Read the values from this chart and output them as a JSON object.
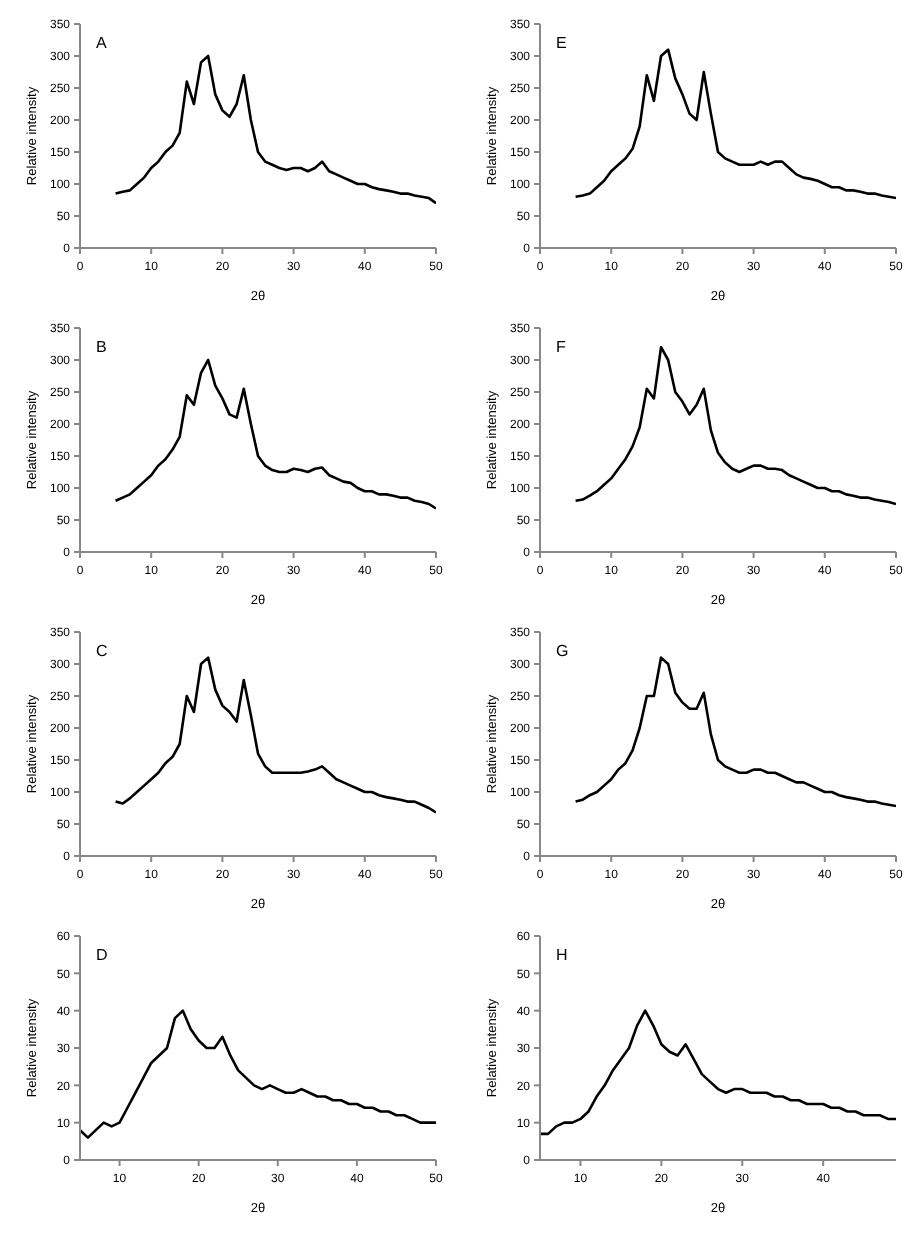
{
  "chart_data": [
    {
      "type": "line",
      "title": "A",
      "xlabel": "2θ",
      "ylabel": "Relative intensity",
      "xlim": [
        0,
        50
      ],
      "ylim": [
        0,
        350
      ],
      "xticks": [
        0,
        10,
        20,
        30,
        40,
        50
      ],
      "yticks": [
        0,
        50,
        100,
        150,
        200,
        250,
        300,
        350
      ],
      "x": [
        5,
        6,
        7,
        8,
        9,
        10,
        11,
        12,
        13,
        14,
        15,
        16,
        17,
        18,
        19,
        20,
        21,
        22,
        23,
        24,
        25,
        26,
        27,
        28,
        29,
        30,
        31,
        32,
        33,
        34,
        35,
        36,
        37,
        38,
        39,
        40,
        41,
        42,
        43,
        44,
        45,
        46,
        47,
        48,
        49,
        50
      ],
      "series": [
        {
          "color": "#000000",
          "values": [
            85,
            88,
            90,
            100,
            110,
            125,
            135,
            150,
            160,
            180,
            260,
            225,
            290,
            300,
            240,
            215,
            205,
            225,
            270,
            200,
            150,
            135,
            130,
            125,
            122,
            125,
            125,
            120,
            125,
            135,
            120,
            115,
            110,
            105,
            100,
            100,
            95,
            92,
            90,
            88,
            85,
            85,
            82,
            80,
            78,
            70
          ]
        }
      ],
      "grid": false,
      "marker": "none",
      "line_style": "solid"
    },
    {
      "type": "line",
      "title": "B",
      "xlabel": "2θ",
      "ylabel": "Relative intensity",
      "xlim": [
        0,
        50
      ],
      "ylim": [
        0,
        350
      ],
      "xticks": [
        0,
        10,
        20,
        30,
        40,
        50
      ],
      "yticks": [
        0,
        50,
        100,
        150,
        200,
        250,
        300,
        350
      ],
      "x": [
        5,
        6,
        7,
        8,
        9,
        10,
        11,
        12,
        13,
        14,
        15,
        16,
        17,
        18,
        19,
        20,
        21,
        22,
        23,
        24,
        25,
        26,
        27,
        28,
        29,
        30,
        31,
        32,
        33,
        34,
        35,
        36,
        37,
        38,
        39,
        40,
        41,
        42,
        43,
        44,
        45,
        46,
        47,
        48,
        49,
        50
      ],
      "series": [
        {
          "color": "#000000",
          "values": [
            80,
            85,
            90,
            100,
            110,
            120,
            135,
            145,
            160,
            180,
            245,
            230,
            280,
            300,
            260,
            240,
            215,
            210,
            255,
            200,
            150,
            135,
            128,
            125,
            125,
            130,
            128,
            125,
            130,
            132,
            120,
            115,
            110,
            108,
            100,
            95,
            95,
            90,
            90,
            88,
            85,
            85,
            80,
            78,
            75,
            68
          ]
        }
      ],
      "grid": false,
      "marker": "none",
      "line_style": "solid"
    },
    {
      "type": "line",
      "title": "C",
      "xlabel": "2θ",
      "ylabel": "Relative intensity",
      "xlim": [
        0,
        50
      ],
      "ylim": [
        0,
        350
      ],
      "xticks": [
        0,
        10,
        20,
        30,
        40,
        50
      ],
      "yticks": [
        0,
        50,
        100,
        150,
        200,
        250,
        300,
        350
      ],
      "x": [
        5,
        6,
        7,
        8,
        9,
        10,
        11,
        12,
        13,
        14,
        15,
        16,
        17,
        18,
        19,
        20,
        21,
        22,
        23,
        24,
        25,
        26,
        27,
        28,
        29,
        30,
        31,
        32,
        33,
        34,
        35,
        36,
        37,
        38,
        39,
        40,
        41,
        42,
        43,
        44,
        45,
        46,
        47,
        48,
        49,
        50
      ],
      "series": [
        {
          "color": "#000000",
          "values": [
            85,
            82,
            90,
            100,
            110,
            120,
            130,
            145,
            155,
            175,
            250,
            225,
            300,
            310,
            260,
            235,
            225,
            210,
            275,
            220,
            160,
            140,
            130,
            130,
            130,
            130,
            130,
            132,
            135,
            140,
            130,
            120,
            115,
            110,
            105,
            100,
            100,
            95,
            92,
            90,
            88,
            85,
            85,
            80,
            75,
            68
          ]
        }
      ],
      "grid": false,
      "marker": "none",
      "line_style": "solid"
    },
    {
      "type": "line",
      "title": "D",
      "xlabel": "2θ",
      "ylabel": "Relative intensity",
      "xlim": [
        5,
        50
      ],
      "ylim": [
        0,
        60
      ],
      "xticks": [
        10,
        20,
        30,
        40,
        50
      ],
      "yticks": [
        0,
        10,
        20,
        30,
        40,
        50,
        60
      ],
      "x": [
        5,
        6,
        7,
        8,
        9,
        10,
        11,
        12,
        13,
        14,
        15,
        16,
        17,
        18,
        19,
        20,
        21,
        22,
        23,
        24,
        25,
        26,
        27,
        28,
        29,
        30,
        31,
        32,
        33,
        34,
        35,
        36,
        37,
        38,
        39,
        40,
        41,
        42,
        43,
        44,
        45,
        46,
        47,
        48,
        49,
        50
      ],
      "series": [
        {
          "color": "#000000",
          "values": [
            8,
            6,
            8,
            10,
            9,
            10,
            14,
            18,
            22,
            26,
            28,
            30,
            38,
            40,
            35,
            32,
            30,
            30,
            33,
            28,
            24,
            22,
            20,
            19,
            20,
            19,
            18,
            18,
            19,
            18,
            17,
            17,
            16,
            16,
            15,
            15,
            14,
            14,
            13,
            13,
            12,
            12,
            11,
            10,
            10,
            10
          ]
        }
      ],
      "grid": false,
      "marker": "none",
      "line_style": "solid"
    },
    {
      "type": "line",
      "title": "E",
      "xlabel": "2θ",
      "ylabel": "Relative intensity",
      "xlim": [
        0,
        50
      ],
      "ylim": [
        0,
        350
      ],
      "xticks": [
        0,
        10,
        20,
        30,
        40,
        50
      ],
      "yticks": [
        0,
        50,
        100,
        150,
        200,
        250,
        300,
        350
      ],
      "x": [
        5,
        6,
        7,
        8,
        9,
        10,
        11,
        12,
        13,
        14,
        15,
        16,
        17,
        18,
        19,
        20,
        21,
        22,
        23,
        24,
        25,
        26,
        27,
        28,
        29,
        30,
        31,
        32,
        33,
        34,
        35,
        36,
        37,
        38,
        39,
        40,
        41,
        42,
        43,
        44,
        45,
        46,
        47,
        48,
        49,
        50
      ],
      "series": [
        {
          "color": "#000000",
          "values": [
            80,
            82,
            85,
            95,
            105,
            120,
            130,
            140,
            155,
            190,
            270,
            230,
            300,
            310,
            265,
            240,
            210,
            200,
            275,
            210,
            150,
            140,
            135,
            130,
            130,
            130,
            135,
            130,
            135,
            135,
            125,
            115,
            110,
            108,
            105,
            100,
            95,
            95,
            90,
            90,
            88,
            85,
            85,
            82,
            80,
            78
          ]
        }
      ],
      "grid": false,
      "marker": "none",
      "line_style": "solid"
    },
    {
      "type": "line",
      "title": "F",
      "xlabel": "2θ",
      "ylabel": "Relative intensity",
      "xlim": [
        0,
        50
      ],
      "ylim": [
        0,
        350
      ],
      "xticks": [
        0,
        10,
        20,
        30,
        40,
        50
      ],
      "yticks": [
        0,
        50,
        100,
        150,
        200,
        250,
        300,
        350
      ],
      "x": [
        5,
        6,
        7,
        8,
        9,
        10,
        11,
        12,
        13,
        14,
        15,
        16,
        17,
        18,
        19,
        20,
        21,
        22,
        23,
        24,
        25,
        26,
        27,
        28,
        29,
        30,
        31,
        32,
        33,
        34,
        35,
        36,
        37,
        38,
        39,
        40,
        41,
        42,
        43,
        44,
        45,
        46,
        47,
        48,
        49,
        50
      ],
      "series": [
        {
          "color": "#000000",
          "values": [
            80,
            82,
            88,
            95,
            105,
            115,
            130,
            145,
            165,
            195,
            255,
            240,
            320,
            300,
            250,
            235,
            215,
            230,
            255,
            190,
            155,
            140,
            130,
            125,
            130,
            135,
            135,
            130,
            130,
            128,
            120,
            115,
            110,
            105,
            100,
            100,
            95,
            95,
            90,
            88,
            85,
            85,
            82,
            80,
            78,
            75
          ]
        }
      ],
      "grid": false,
      "marker": "none",
      "line_style": "solid"
    },
    {
      "type": "line",
      "title": "G",
      "xlabel": "2θ",
      "ylabel": "Relative intensity",
      "xlim": [
        0,
        50
      ],
      "ylim": [
        0,
        350
      ],
      "xticks": [
        0,
        10,
        20,
        30,
        40,
        50
      ],
      "yticks": [
        0,
        50,
        100,
        150,
        200,
        250,
        300,
        350
      ],
      "x": [
        5,
        6,
        7,
        8,
        9,
        10,
        11,
        12,
        13,
        14,
        15,
        16,
        17,
        18,
        19,
        20,
        21,
        22,
        23,
        24,
        25,
        26,
        27,
        28,
        29,
        30,
        31,
        32,
        33,
        34,
        35,
        36,
        37,
        38,
        39,
        40,
        41,
        42,
        43,
        44,
        45,
        46,
        47,
        48,
        49,
        50
      ],
      "series": [
        {
          "color": "#000000",
          "values": [
            85,
            88,
            95,
            100,
            110,
            120,
            135,
            145,
            165,
            200,
            250,
            250,
            310,
            300,
            255,
            240,
            230,
            230,
            255,
            190,
            150,
            140,
            135,
            130,
            130,
            135,
            135,
            130,
            130,
            125,
            120,
            115,
            115,
            110,
            105,
            100,
            100,
            95,
            92,
            90,
            88,
            85,
            85,
            82,
            80,
            78
          ]
        }
      ],
      "grid": false,
      "marker": "none",
      "line_style": "solid"
    },
    {
      "type": "line",
      "title": "H",
      "xlabel": "2θ",
      "ylabel": "Relative intensity",
      "xlim": [
        5,
        49
      ],
      "ylim": [
        0,
        60
      ],
      "xticks": [
        10,
        20,
        30,
        40
      ],
      "yticks": [
        0,
        10,
        20,
        30,
        40,
        50,
        60
      ],
      "x": [
        5,
        6,
        7,
        8,
        9,
        10,
        11,
        12,
        13,
        14,
        15,
        16,
        17,
        18,
        19,
        20,
        21,
        22,
        23,
        24,
        25,
        26,
        27,
        28,
        29,
        30,
        31,
        32,
        33,
        34,
        35,
        36,
        37,
        38,
        39,
        40,
        41,
        42,
        43,
        44,
        45,
        46,
        47,
        48,
        49
      ],
      "series": [
        {
          "color": "#000000",
          "values": [
            7,
            7,
            9,
            10,
            10,
            11,
            13,
            17,
            20,
            24,
            27,
            30,
            36,
            40,
            36,
            31,
            29,
            28,
            31,
            27,
            23,
            21,
            19,
            18,
            19,
            19,
            18,
            18,
            18,
            17,
            17,
            16,
            16,
            15,
            15,
            15,
            14,
            14,
            13,
            13,
            12,
            12,
            12,
            11,
            11
          ]
        }
      ],
      "grid": false,
      "marker": "none",
      "line_style": "solid"
    }
  ]
}
